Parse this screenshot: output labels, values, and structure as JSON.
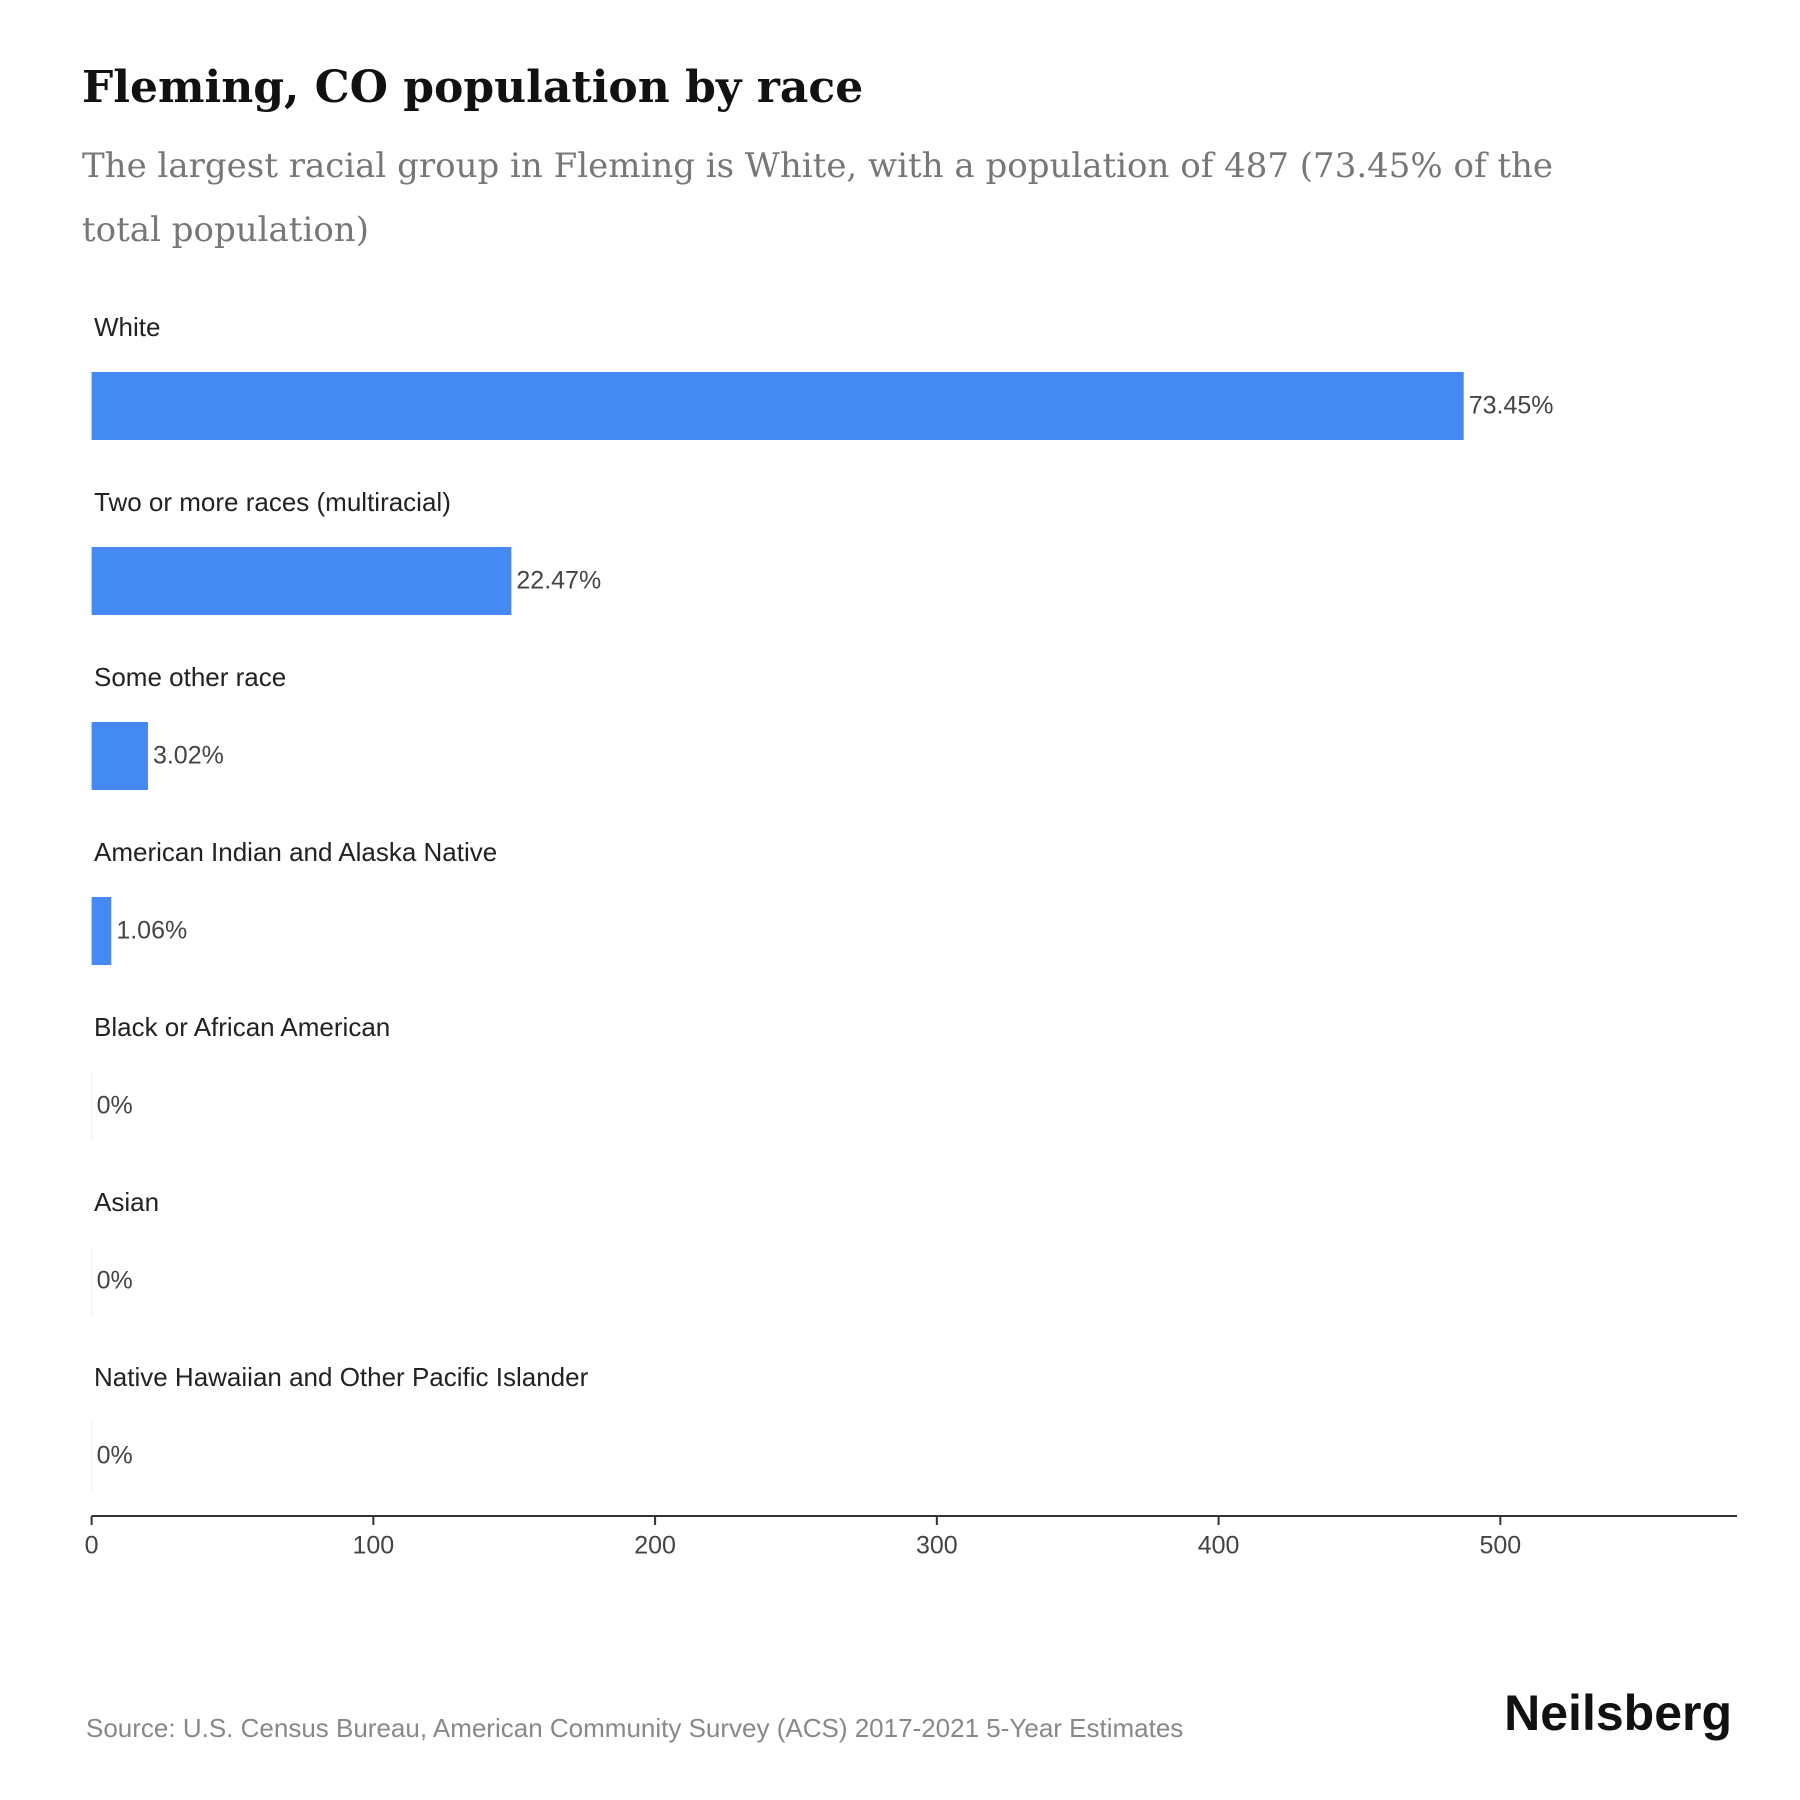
{
  "chart_data": {
    "type": "hbar",
    "title": "Fleming, CO population by race",
    "subtitle": "The largest racial group in Fleming is White, with a population of 487 (73.45% of the total population)",
    "categories": [
      "White",
      "Two or more races (multiracial)",
      "Some other race",
      "American Indian and Alaska Native",
      "Black or African American",
      "Asian",
      "Native Hawaiian and Other Pacific Islander"
    ],
    "values": [
      487,
      149,
      20,
      7,
      0,
      0,
      0
    ],
    "share_labels": [
      "73.45%",
      "22.47%",
      "3.02%",
      "1.06%",
      "0%",
      "0%",
      "0%"
    ],
    "color": "#4589f2",
    "xlim": [
      0,
      584
    ],
    "xticks": [
      0,
      100,
      200,
      300,
      400,
      500
    ],
    "source": "Source: U.S. Census Bureau, American Community Survey (ACS) 2017-2021 5-Year Estimates",
    "brand": "Neilsberg"
  }
}
